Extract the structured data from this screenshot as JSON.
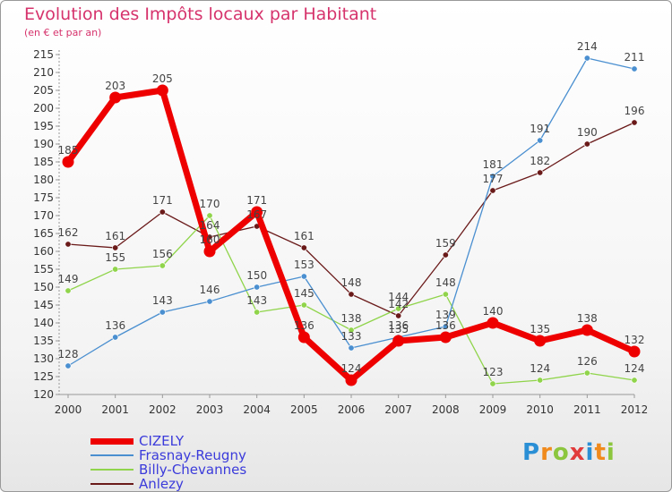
{
  "title": "Evolution des Impôts locaux par Habitant",
  "subtitle": "(en € et par an)",
  "logo": {
    "letters": [
      {
        "char": "P",
        "color": "#2b8fd6"
      },
      {
        "char": "r",
        "color": "#f08a1c"
      },
      {
        "char": "o",
        "color": "#8cc63f"
      },
      {
        "char": "x",
        "color": "#e23b3b"
      },
      {
        "char": "i",
        "color": "#2b8fd6"
      },
      {
        "char": "t",
        "color": "#f08a1c"
      },
      {
        "char": "i",
        "color": "#8cc63f"
      }
    ]
  },
  "chart_data": {
    "type": "line",
    "title": "Evolution des Impôts locaux par Habitant",
    "subtitle": "(en € et par an)",
    "x": [
      2000,
      2001,
      2002,
      2003,
      2004,
      2005,
      2006,
      2007,
      2008,
      2009,
      2010,
      2011,
      2012
    ],
    "ylim": [
      120,
      215
    ],
    "yticks": [
      120,
      125,
      130,
      135,
      140,
      145,
      150,
      155,
      160,
      165,
      170,
      175,
      180,
      185,
      190,
      195,
      200,
      205,
      210,
      215
    ],
    "grid": false,
    "legend_position": "bottom-left",
    "series": [
      {
        "name": "CIZELY",
        "color": "#ee0000",
        "values": [
          185,
          203,
          205,
          160,
          171,
          136,
          124,
          135,
          136,
          140,
          135,
          138,
          132
        ]
      },
      {
        "name": "Frasnay-Reugny",
        "color": "#4a8fd0",
        "values": [
          128,
          136,
          143,
          146,
          150,
          153,
          133,
          136,
          139,
          181,
          191,
          214,
          211
        ]
      },
      {
        "name": "Billy-Chevannes",
        "color": "#8fd44a",
        "values": [
          149,
          155,
          156,
          170,
          143,
          145,
          138,
          144,
          148,
          123,
          124,
          126,
          124
        ]
      },
      {
        "name": "Anlezy",
        "color": "#6b1a1a",
        "values": [
          162,
          161,
          171,
          164,
          167,
          161,
          148,
          142,
          159,
          177,
          182,
          190,
          196
        ]
      }
    ]
  }
}
